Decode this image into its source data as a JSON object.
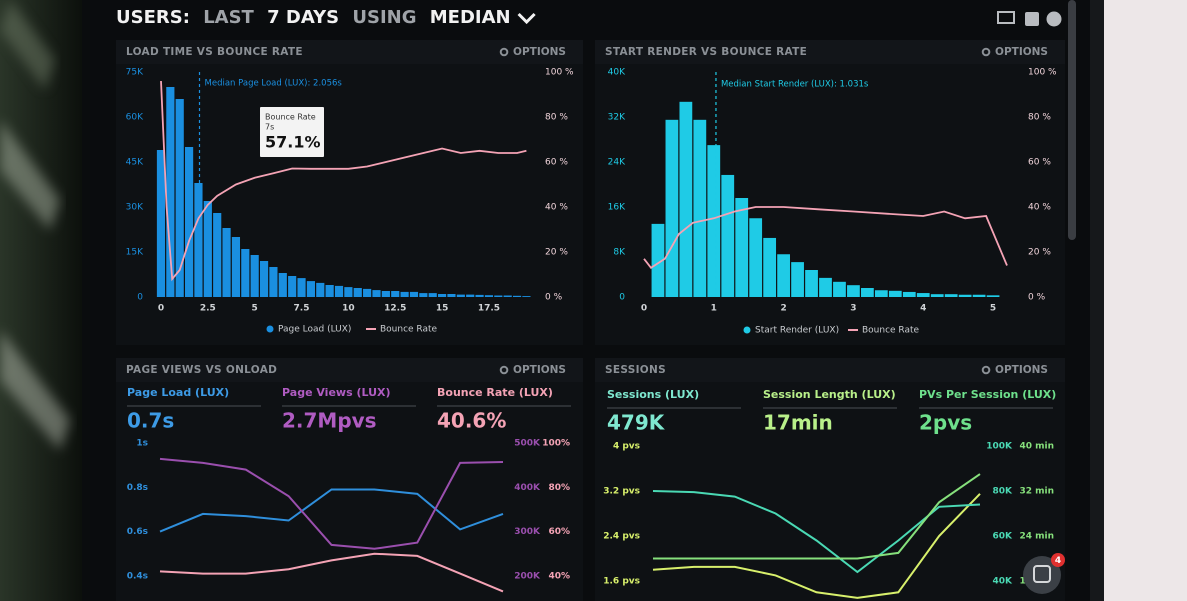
{
  "header": {
    "parts": [
      "USERS:",
      "LAST",
      "7 DAYS",
      "USING",
      "MEDIAN"
    ]
  },
  "notification_count": "4",
  "panels": [
    {
      "title": "LOAD TIME VS BOUNCE RATE",
      "options": "OPTIONS",
      "chart": {
        "type": "histogram",
        "name": "Page Load (LUX)",
        "color": "#1a8fe0",
        "bins": [
          -0.25,
          0.25,
          0.75,
          1.25,
          1.75,
          2.25,
          2.75,
          3.25,
          3.75,
          4.25,
          4.75,
          5.25,
          5.75,
          6.25,
          6.75,
          7.25,
          7.75,
          8.25,
          8.75,
          9.25,
          9.75,
          10.25,
          10.75,
          11.25,
          11.75,
          12.25,
          12.75,
          13.25,
          13.75,
          14.25,
          14.75,
          15.25,
          15.75,
          16.25,
          16.75,
          17.25,
          17.75,
          18.25,
          18.75,
          19.25,
          19.75
        ],
        "values": [
          49000,
          70000,
          66000,
          50000,
          38000,
          32000,
          28000,
          23000,
          20000,
          16000,
          14000,
          12000,
          10000,
          8000,
          7000,
          6300,
          5300,
          4700,
          4000,
          3700,
          3300,
          3000,
          2700,
          2300,
          2000,
          2000,
          1700,
          1700,
          1300,
          1300,
          1000,
          1000,
          800,
          800,
          700,
          600,
          500,
          500,
          400,
          300
        ],
        "xlim": [
          -0.5,
          20
        ],
        "xticks": [
          0,
          2.5,
          5,
          7.5,
          10,
          12.5,
          15,
          17.5
        ],
        "ylim": [
          0,
          75000
        ],
        "yticks": [
          {
            "value": 0,
            "label": "0"
          },
          {
            "value": 15000,
            "label": "15K"
          },
          {
            "value": 30000,
            "label": "30K"
          },
          {
            "value": 45000,
            "label": "45K"
          },
          {
            "value": 60000,
            "label": "60K"
          },
          {
            "value": 75000,
            "label": "75K"
          }
        ],
        "y2lim": [
          0,
          100
        ],
        "y2ticks": [
          {
            "value": 0,
            "label": "0 %"
          },
          {
            "value": 20,
            "label": "20 %"
          },
          {
            "value": 40,
            "label": "40 %"
          },
          {
            "value": 60,
            "label": "60 %"
          },
          {
            "value": 80,
            "label": "80 %"
          },
          {
            "value": 100,
            "label": "100 %"
          }
        ],
        "line": {
          "name": "Bounce Rate",
          "color": "#f4a3b5",
          "axis": "y2",
          "x": [
            0,
            0.3,
            0.6,
            1,
            1.5,
            2,
            2.5,
            3,
            4,
            5,
            6,
            7,
            8,
            9,
            10,
            11,
            12,
            13,
            14,
            15,
            16,
            17,
            18,
            19,
            19.5
          ],
          "values": [
            96,
            40,
            8,
            12,
            25,
            35,
            41,
            45,
            50,
            53,
            55,
            57.1,
            57,
            57,
            57,
            58,
            60,
            62,
            64,
            66,
            64,
            65,
            64,
            64,
            65
          ]
        },
        "median": {
          "value": 2.056,
          "label": "Median Page Load (LUX): 2.056s"
        },
        "tooltip": {
          "title": "Bounce Rate",
          "subtitle": "7s",
          "text": "57.1%"
        }
      }
    },
    {
      "title": "START RENDER VS BOUNCE RATE",
      "options": "OPTIONS",
      "chart": {
        "type": "histogram",
        "name": "Start Render (LUX)",
        "color": "#1fcbe6",
        "bins": [
          0.1,
          0.3,
          0.5,
          0.7,
          0.9,
          1.1,
          1.3,
          1.5,
          1.7,
          1.9,
          2.1,
          2.3,
          2.5,
          2.7,
          2.9,
          3.1,
          3.3,
          3.5,
          3.7,
          3.9,
          4.1,
          4.3,
          4.5,
          4.7,
          4.9,
          5.1
        ],
        "values": [
          13000,
          31500,
          34700,
          31500,
          27000,
          21700,
          17600,
          14000,
          10500,
          7600,
          6200,
          4800,
          3400,
          2700,
          2100,
          1600,
          1200,
          1100,
          900,
          700,
          500,
          500,
          400,
          400,
          300
        ],
        "xlim": [
          -0.1,
          5.3
        ],
        "xticks": [
          0,
          1,
          2,
          3,
          4,
          5
        ],
        "ylim": [
          0,
          40000
        ],
        "yticks": [
          {
            "value": 0,
            "label": "0"
          },
          {
            "value": 8000,
            "label": "8K"
          },
          {
            "value": 16000,
            "label": "16K"
          },
          {
            "value": 24000,
            "label": "24K"
          },
          {
            "value": 32000,
            "label": "32K"
          },
          {
            "value": 40000,
            "label": "40K"
          }
        ],
        "y2lim": [
          0,
          100
        ],
        "y2ticks": [
          {
            "value": 0,
            "label": "0 %"
          },
          {
            "value": 20,
            "label": "20 %"
          },
          {
            "value": 40,
            "label": "40 %"
          },
          {
            "value": 60,
            "label": "60 %"
          },
          {
            "value": 80,
            "label": "80 %"
          },
          {
            "value": 100,
            "label": "100 %"
          }
        ],
        "line": {
          "name": "Bounce Rate",
          "color": "#f4a3b5",
          "axis": "y2",
          "x": [
            0,
            0.1,
            0.3,
            0.5,
            0.7,
            1,
            1.3,
            1.6,
            2,
            2.5,
            3,
            3.5,
            4,
            4.3,
            4.6,
            4.9,
            5.2
          ],
          "values": [
            17,
            13,
            17,
            28,
            33,
            35,
            38,
            40,
            40,
            39,
            38,
            37,
            36,
            38,
            35,
            36,
            14
          ]
        },
        "median": {
          "value": 1.031,
          "label": "Median Start Render (LUX): 1.031s"
        }
      }
    },
    {
      "title": "PAGE VIEWS VS ONLOAD",
      "options": "OPTIONS",
      "stats": [
        {
          "label": "Page Load (LUX)",
          "value": "0.7s",
          "color": "#3d9be6"
        },
        {
          "label": "Page Views (LUX)",
          "value": "2.7Mpvs",
          "color": "#b05cc2"
        },
        {
          "label": "Bounce Rate (LUX)",
          "value": "40.6%",
          "color": "#f4a3b5"
        }
      ],
      "chart": {
        "type": "line",
        "categories": [
          null,
          null,
          null,
          null,
          null,
          null,
          null,
          null,
          null
        ],
        "ylim": [
          0.3,
          1
        ],
        "yticks": [
          {
            "value": 1,
            "label": "1s"
          },
          {
            "value": 0.8,
            "label": "0.8s"
          },
          {
            "value": 0.6,
            "label": "0.6s"
          },
          {
            "value": 0.4,
            "label": "0.4s"
          }
        ],
        "y2lim": [
          150000,
          500000
        ],
        "y2ticks": [
          {
            "value": 500000,
            "label": "500K"
          },
          {
            "value": 400000,
            "label": "400K"
          },
          {
            "value": 300000,
            "label": "300K"
          },
          {
            "value": 200000,
            "label": "200K"
          }
        ],
        "y3lim": [
          30,
          100
        ],
        "y3ticks": [
          {
            "value": 100,
            "label": "100%"
          },
          {
            "value": 80,
            "label": "80%"
          },
          {
            "value": 60,
            "label": "60%"
          },
          {
            "value": 40,
            "label": "40%"
          }
        ],
        "series": [
          {
            "color": "#2f8fdc",
            "axis": "y",
            "values": [
              0.6,
              0.68,
              0.67,
              0.65,
              0.79,
              0.79,
              0.77,
              0.61,
              0.68
            ]
          },
          {
            "color": "#9a4fae",
            "axis": "y2",
            "values": [
              464000,
              455000,
              440000,
              380000,
              270000,
              261000,
              275000,
              455000,
              457000
            ]
          },
          {
            "color": "#f4a3b5",
            "axis": "y3",
            "values": [
              42,
              41,
              41,
              43,
              47,
              50,
              49,
              41,
              33
            ]
          }
        ]
      }
    },
    {
      "title": "SESSIONS",
      "options": "OPTIONS",
      "stats": [
        {
          "label": "Sessions (LUX)",
          "value": "479K",
          "color": "#7fe8d0"
        },
        {
          "label": "Session Length (LUX)",
          "value": "17min",
          "color": "#b9f08a"
        },
        {
          "label": "PVs Per Session (LUX)",
          "value": "2pvs",
          "color": "#6ee08c"
        }
      ],
      "chart": {
        "type": "line",
        "categories": [
          null,
          null,
          null,
          null,
          null,
          null,
          null,
          null,
          null
        ],
        "ylim": [
          1.2,
          4
        ],
        "yticks": [
          {
            "value": 4,
            "label": "4 pvs"
          },
          {
            "value": 3.2,
            "label": "3.2 pvs"
          },
          {
            "value": 2.4,
            "label": "2.4 pvs"
          },
          {
            "value": 1.6,
            "label": "1.6 pvs"
          }
        ],
        "y2lim": [
          30000,
          100000
        ],
        "y2ticks": [
          {
            "value": 100000,
            "label": "100K"
          },
          {
            "value": 80000,
            "label": "80K"
          },
          {
            "value": 60000,
            "label": "60K"
          },
          {
            "value": 40000,
            "label": "40K"
          }
        ],
        "y3lim": [
          12,
          40
        ],
        "y3ticks": [
          {
            "value": 40,
            "label": "40 min"
          },
          {
            "value": 32,
            "label": "32 min"
          },
          {
            "value": 24,
            "label": "24 min"
          },
          {
            "value": 16,
            "label": "16 min"
          }
        ],
        "series": [
          {
            "color": "#d8f06c",
            "axis": "y",
            "values": [
              1.8,
              1.85,
              1.85,
              1.7,
              1.4,
              1.3,
              1.4,
              2.4,
              3.15
            ]
          },
          {
            "color": "#4ad9b4",
            "axis": "y2",
            "values": [
              80000,
              79500,
              77500,
              70000,
              58000,
              44000,
              58000,
              73000,
              74000
            ]
          },
          {
            "color": "#86e07c",
            "axis": "y3",
            "values": [
              20,
              20,
              20,
              20,
              20,
              20,
              21,
              30,
              35
            ]
          }
        ]
      }
    }
  ]
}
